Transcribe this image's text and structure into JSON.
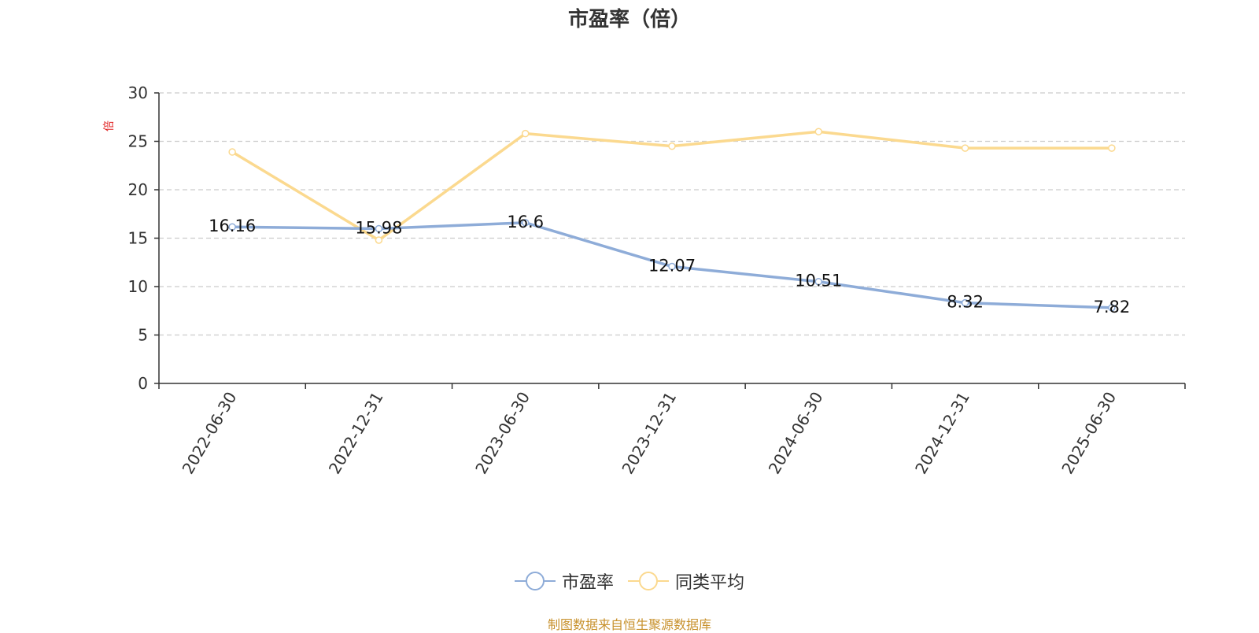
{
  "chart_data": {
    "type": "line",
    "title": "市盈率（倍）",
    "unit": "倍",
    "categories": [
      "2022-06-30",
      "2022-12-31",
      "2023-06-30",
      "2023-12-31",
      "2024-06-30",
      "2024-12-31",
      "2025-06-30"
    ],
    "ylim": [
      0,
      30
    ],
    "yticks": [
      0,
      5,
      10,
      15,
      20,
      25,
      30
    ],
    "grid": true,
    "legend_position": "bottom-center",
    "series": [
      {
        "name": "市盈率",
        "color": "#8eacd8",
        "values": [
          16.16,
          15.98,
          16.6,
          12.07,
          10.51,
          8.32,
          7.82
        ],
        "labels": [
          "16.16",
          "15.98",
          "16.6",
          "12.07",
          "10.51",
          "8.32",
          "7.82"
        ]
      },
      {
        "name": "同类平均",
        "color": "#fbd98f",
        "values": [
          23.9,
          14.8,
          25.8,
          24.5,
          26.0,
          24.3,
          24.3
        ]
      }
    ],
    "source": "制图数据来自恒生聚源数据库"
  }
}
